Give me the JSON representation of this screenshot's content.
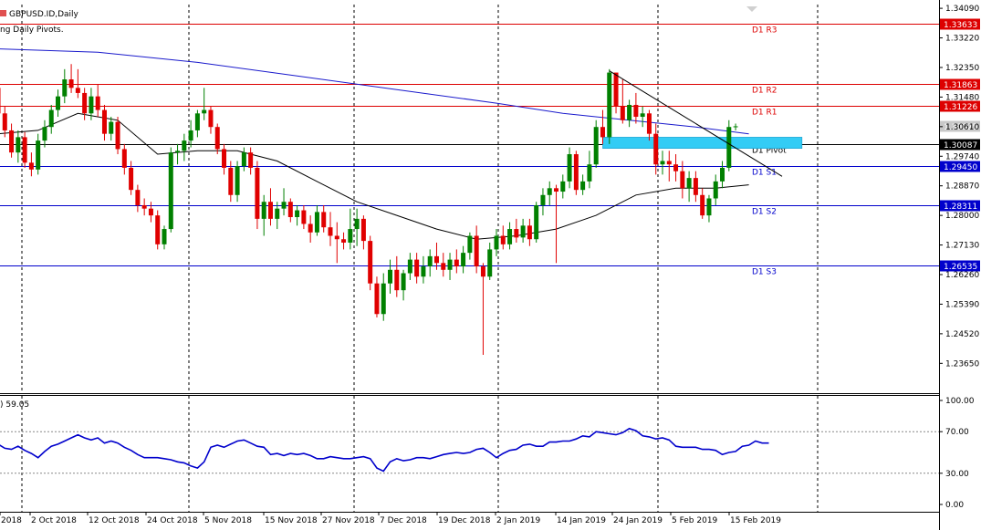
{
  "chart_data": {
    "type": "candlestick",
    "symbol_title": "GBPUSD.ID,Daily",
    "indicator_caption": "ng Daily Pivots.",
    "main_ylim": [
      1.228,
      1.342
    ],
    "price_ticks": [
      "1.34090",
      "1.33220",
      "1.32350",
      "1.31480",
      "1.30610",
      "1.29740",
      "1.28870",
      "1.28000",
      "1.27130",
      "1.26260",
      "1.25390",
      "1.24520",
      "1.23650"
    ],
    "date_labels": [
      "2018",
      "2 Oct 2018",
      "12 Oct 2018",
      "24 Oct 2018",
      "5 Nov 2018",
      "15 Nov 2018",
      "27 Nov 2018",
      "7 Dec 2018",
      "19 Dec 2018",
      "2 Jan 2019",
      "14 Jan 2019",
      "24 Jan 2019",
      "5 Feb 2019",
      "15 Feb 2019"
    ],
    "pivot_levels": [
      {
        "label": "D1 R3",
        "value": 1.33633,
        "tag": "1.33633",
        "color": "#dd0000"
      },
      {
        "label": "D1 R2",
        "value": 1.31863,
        "tag": "1.31863",
        "color": "#dd0000"
      },
      {
        "label": "D1 R1",
        "value": 1.31226,
        "tag": "1.31226",
        "color": "#dd0000"
      },
      {
        "label": "D1 Pivot",
        "value": 1.30087,
        "tag": "1.30087",
        "color": "#000000"
      },
      {
        "label": "D1 S1",
        "value": 1.2945,
        "tag": "1.29450",
        "color": "#0000cc"
      },
      {
        "label": "D1 S2",
        "value": 1.28311,
        "tag": "1.28311",
        "color": "#0000cc"
      },
      {
        "label": "D1 S3",
        "value": 1.26535,
        "tag": "1.26535",
        "color": "#0000cc"
      }
    ],
    "current_price_tag": "1.30625",
    "candles": [
      {
        "o": 1.3175,
        "h": 1.3192,
        "l": 1.3085,
        "c": 1.31
      },
      {
        "o": 1.31,
        "h": 1.312,
        "l": 1.303,
        "c": 1.305
      },
      {
        "o": 1.305,
        "h": 1.307,
        "l": 1.297,
        "c": 1.2985
      },
      {
        "o": 1.2985,
        "h": 1.305,
        "l": 1.2955,
        "c": 1.303
      },
      {
        "o": 1.303,
        "h": 1.3045,
        "l": 1.294,
        "c": 1.2955
      },
      {
        "o": 1.2955,
        "h": 1.2985,
        "l": 1.2915,
        "c": 1.2935
      },
      {
        "o": 1.2935,
        "h": 1.304,
        "l": 1.292,
        "c": 1.302
      },
      {
        "o": 1.302,
        "h": 1.308,
        "l": 1.3,
        "c": 1.306
      },
      {
        "o": 1.306,
        "h": 1.3125,
        "l": 1.304,
        "c": 1.311
      },
      {
        "o": 1.311,
        "h": 1.317,
        "l": 1.309,
        "c": 1.315
      },
      {
        "o": 1.315,
        "h": 1.323,
        "l": 1.313,
        "c": 1.32
      },
      {
        "o": 1.32,
        "h": 1.3245,
        "l": 1.316,
        "c": 1.3175
      },
      {
        "o": 1.3175,
        "h": 1.323,
        "l": 1.3145,
        "c": 1.316
      },
      {
        "o": 1.316,
        "h": 1.3175,
        "l": 1.308,
        "c": 1.31
      },
      {
        "o": 1.31,
        "h": 1.3175,
        "l": 1.308,
        "c": 1.315
      },
      {
        "o": 1.315,
        "h": 1.3185,
        "l": 1.309,
        "c": 1.311
      },
      {
        "o": 1.311,
        "h": 1.3125,
        "l": 1.302,
        "c": 1.304
      },
      {
        "o": 1.304,
        "h": 1.309,
        "l": 1.302,
        "c": 1.3075
      },
      {
        "o": 1.3075,
        "h": 1.309,
        "l": 1.298,
        "c": 1.2995
      },
      {
        "o": 1.2995,
        "h": 1.301,
        "l": 1.292,
        "c": 1.294
      },
      {
        "o": 1.294,
        "h": 1.296,
        "l": 1.286,
        "c": 1.2875
      },
      {
        "o": 1.2875,
        "h": 1.289,
        "l": 1.281,
        "c": 1.283
      },
      {
        "o": 1.283,
        "h": 1.285,
        "l": 1.28,
        "c": 1.282
      },
      {
        "o": 1.282,
        "h": 1.284,
        "l": 1.278,
        "c": 1.28
      },
      {
        "o": 1.28,
        "h": 1.2815,
        "l": 1.27,
        "c": 1.2715
      },
      {
        "o": 1.2715,
        "h": 1.277,
        "l": 1.27,
        "c": 1.276
      },
      {
        "o": 1.276,
        "h": 1.3,
        "l": 1.275,
        "c": 1.2985
      },
      {
        "o": 1.2985,
        "h": 1.301,
        "l": 1.295,
        "c": 1.299
      },
      {
        "o": 1.299,
        "h": 1.304,
        "l": 1.296,
        "c": 1.302
      },
      {
        "o": 1.302,
        "h": 1.308,
        "l": 1.3,
        "c": 1.305
      },
      {
        "o": 1.305,
        "h": 1.311,
        "l": 1.303,
        "c": 1.31
      },
      {
        "o": 1.31,
        "h": 1.3175,
        "l": 1.308,
        "c": 1.311
      },
      {
        "o": 1.311,
        "h": 1.312,
        "l": 1.304,
        "c": 1.306
      },
      {
        "o": 1.306,
        "h": 1.307,
        "l": 1.298,
        "c": 1.2995
      },
      {
        "o": 1.2995,
        "h": 1.301,
        "l": 1.292,
        "c": 1.294
      },
      {
        "o": 1.294,
        "h": 1.296,
        "l": 1.284,
        "c": 1.286
      },
      {
        "o": 1.286,
        "h": 1.296,
        "l": 1.284,
        "c": 1.2945
      },
      {
        "o": 1.2945,
        "h": 1.3,
        "l": 1.293,
        "c": 1.2985
      },
      {
        "o": 1.2985,
        "h": 1.3,
        "l": 1.292,
        "c": 1.294
      },
      {
        "o": 1.294,
        "h": 1.296,
        "l": 1.276,
        "c": 1.279
      },
      {
        "o": 1.279,
        "h": 1.286,
        "l": 1.274,
        "c": 1.284
      },
      {
        "o": 1.284,
        "h": 1.288,
        "l": 1.277,
        "c": 1.279
      },
      {
        "o": 1.279,
        "h": 1.284,
        "l": 1.276,
        "c": 1.282
      },
      {
        "o": 1.282,
        "h": 1.288,
        "l": 1.28,
        "c": 1.284
      },
      {
        "o": 1.284,
        "h": 1.285,
        "l": 1.278,
        "c": 1.2795
      },
      {
        "o": 1.2795,
        "h": 1.283,
        "l": 1.277,
        "c": 1.2815
      },
      {
        "o": 1.2815,
        "h": 1.283,
        "l": 1.276,
        "c": 1.2775
      },
      {
        "o": 1.2775,
        "h": 1.28,
        "l": 1.272,
        "c": 1.275
      },
      {
        "o": 1.275,
        "h": 1.283,
        "l": 1.274,
        "c": 1.281
      },
      {
        "o": 1.281,
        "h": 1.283,
        "l": 1.275,
        "c": 1.2765
      },
      {
        "o": 1.2765,
        "h": 1.281,
        "l": 1.271,
        "c": 1.274
      },
      {
        "o": 1.274,
        "h": 1.278,
        "l": 1.266,
        "c": 1.273
      },
      {
        "o": 1.273,
        "h": 1.275,
        "l": 1.27,
        "c": 1.272
      },
      {
        "o": 1.272,
        "h": 1.282,
        "l": 1.27,
        "c": 1.276
      },
      {
        "o": 1.276,
        "h": 1.282,
        "l": 1.271,
        "c": 1.279
      },
      {
        "o": 1.279,
        "h": 1.28,
        "l": 1.27,
        "c": 1.2725
      },
      {
        "o": 1.2725,
        "h": 1.274,
        "l": 1.258,
        "c": 1.26
      },
      {
        "o": 1.26,
        "h": 1.262,
        "l": 1.25,
        "c": 1.251
      },
      {
        "o": 1.251,
        "h": 1.263,
        "l": 1.249,
        "c": 1.26
      },
      {
        "o": 1.26,
        "h": 1.267,
        "l": 1.257,
        "c": 1.264
      },
      {
        "o": 1.264,
        "h": 1.268,
        "l": 1.256,
        "c": 1.258
      },
      {
        "o": 1.258,
        "h": 1.264,
        "l": 1.255,
        "c": 1.263
      },
      {
        "o": 1.263,
        "h": 1.269,
        "l": 1.261,
        "c": 1.267
      },
      {
        "o": 1.267,
        "h": 1.269,
        "l": 1.26,
        "c": 1.262
      },
      {
        "o": 1.262,
        "h": 1.268,
        "l": 1.26,
        "c": 1.265
      },
      {
        "o": 1.265,
        "h": 1.27,
        "l": 1.262,
        "c": 1.268
      },
      {
        "o": 1.268,
        "h": 1.272,
        "l": 1.264,
        "c": 1.266
      },
      {
        "o": 1.266,
        "h": 1.269,
        "l": 1.262,
        "c": 1.264
      },
      {
        "o": 1.264,
        "h": 1.269,
        "l": 1.261,
        "c": 1.267
      },
      {
        "o": 1.267,
        "h": 1.27,
        "l": 1.263,
        "c": 1.265
      },
      {
        "o": 1.265,
        "h": 1.271,
        "l": 1.263,
        "c": 1.269
      },
      {
        "o": 1.269,
        "h": 1.275,
        "l": 1.267,
        "c": 1.274
      },
      {
        "o": 1.274,
        "h": 1.277,
        "l": 1.263,
        "c": 1.265
      },
      {
        "o": 1.265,
        "h": 1.266,
        "l": 1.239,
        "c": 1.262
      },
      {
        "o": 1.262,
        "h": 1.272,
        "l": 1.261,
        "c": 1.27
      },
      {
        "o": 1.27,
        "h": 1.276,
        "l": 1.268,
        "c": 1.274
      },
      {
        "o": 1.274,
        "h": 1.277,
        "l": 1.27,
        "c": 1.2715
      },
      {
        "o": 1.2715,
        "h": 1.278,
        "l": 1.27,
        "c": 1.276
      },
      {
        "o": 1.276,
        "h": 1.279,
        "l": 1.272,
        "c": 1.2735
      },
      {
        "o": 1.2735,
        "h": 1.279,
        "l": 1.272,
        "c": 1.277
      },
      {
        "o": 1.277,
        "h": 1.279,
        "l": 1.271,
        "c": 1.273
      },
      {
        "o": 1.273,
        "h": 1.284,
        "l": 1.272,
        "c": 1.283
      },
      {
        "o": 1.283,
        "h": 1.288,
        "l": 1.28,
        "c": 1.286
      },
      {
        "o": 1.286,
        "h": 1.29,
        "l": 1.283,
        "c": 1.288
      },
      {
        "o": 1.288,
        "h": 1.289,
        "l": 1.266,
        "c": 1.287
      },
      {
        "o": 1.287,
        "h": 1.292,
        "l": 1.285,
        "c": 1.29
      },
      {
        "o": 1.29,
        "h": 1.3,
        "l": 1.288,
        "c": 1.298
      },
      {
        "o": 1.298,
        "h": 1.299,
        "l": 1.286,
        "c": 1.2875
      },
      {
        "o": 1.2875,
        "h": 1.292,
        "l": 1.286,
        "c": 1.29
      },
      {
        "o": 1.29,
        "h": 1.299,
        "l": 1.288,
        "c": 1.295
      },
      {
        "o": 1.295,
        "h": 1.308,
        "l": 1.294,
        "c": 1.306
      },
      {
        "o": 1.306,
        "h": 1.311,
        "l": 1.301,
        "c": 1.303
      },
      {
        "o": 1.303,
        "h": 1.323,
        "l": 1.301,
        "c": 1.322
      },
      {
        "o": 1.322,
        "h": 1.3215,
        "l": 1.31,
        "c": 1.312
      },
      {
        "o": 1.312,
        "h": 1.32,
        "l": 1.307,
        "c": 1.308
      },
      {
        "o": 1.308,
        "h": 1.314,
        "l": 1.306,
        "c": 1.3125
      },
      {
        "o": 1.3125,
        "h": 1.316,
        "l": 1.307,
        "c": 1.309
      },
      {
        "o": 1.309,
        "h": 1.312,
        "l": 1.306,
        "c": 1.31
      },
      {
        "o": 1.31,
        "h": 1.311,
        "l": 1.302,
        "c": 1.304
      },
      {
        "o": 1.304,
        "h": 1.307,
        "l": 1.292,
        "c": 1.295
      },
      {
        "o": 1.295,
        "h": 1.299,
        "l": 1.292,
        "c": 1.296
      },
      {
        "o": 1.296,
        "h": 1.299,
        "l": 1.29,
        "c": 1.295
      },
      {
        "o": 1.295,
        "h": 1.298,
        "l": 1.29,
        "c": 1.293
      },
      {
        "o": 1.293,
        "h": 1.296,
        "l": 1.285,
        "c": 1.288
      },
      {
        "o": 1.288,
        "h": 1.293,
        "l": 1.284,
        "c": 1.291
      },
      {
        "o": 1.291,
        "h": 1.293,
        "l": 1.284,
        "c": 1.286
      },
      {
        "o": 1.286,
        "h": 1.288,
        "l": 1.279,
        "c": 1.28
      },
      {
        "o": 1.28,
        "h": 1.286,
        "l": 1.278,
        "c": 1.285
      },
      {
        "o": 1.285,
        "h": 1.292,
        "l": 1.283,
        "c": 1.29
      },
      {
        "o": 1.29,
        "h": 1.296,
        "l": 1.288,
        "c": 1.294
      },
      {
        "o": 1.294,
        "h": 1.308,
        "l": 1.293,
        "c": 1.306
      },
      {
        "o": 1.306,
        "h": 1.307,
        "l": 1.305,
        "c": 1.3062
      }
    ],
    "ma_slow": [
      [
        0,
        1.329
      ],
      [
        15,
        1.328
      ],
      [
        30,
        1.325
      ],
      [
        45,
        1.321
      ],
      [
        60,
        1.317
      ],
      [
        75,
        1.313
      ],
      [
        85,
        1.31
      ],
      [
        95,
        1.308
      ],
      [
        105,
        1.306
      ],
      [
        113,
        1.304
      ]
    ],
    "ma_fast": [
      [
        0,
        1.304
      ],
      [
        6,
        1.305
      ],
      [
        12,
        1.31
      ],
      [
        18,
        1.308
      ],
      [
        24,
        1.298
      ],
      [
        30,
        1.299
      ],
      [
        36,
        1.299
      ],
      [
        42,
        1.296
      ],
      [
        48,
        1.29
      ],
      [
        54,
        1.284
      ],
      [
        60,
        1.28
      ],
      [
        66,
        1.276
      ],
      [
        72,
        1.273
      ],
      [
        78,
        1.274
      ],
      [
        84,
        1.276
      ],
      [
        90,
        1.28
      ],
      [
        96,
        1.286
      ],
      [
        102,
        1.288
      ],
      [
        108,
        1.288
      ],
      [
        113,
        1.289
      ]
    ],
    "trendline": {
      "i0": 92,
      "v0": 1.3225,
      "i1": 118,
      "v1": 1.2915
    },
    "zone": {
      "i0": 91,
      "i1": 121,
      "top": 1.3022,
      "bottom": 1.3005,
      "color": "#33ccf5"
    },
    "rsi": {
      "label_value": "59.05",
      "ylim": [
        0,
        100
      ],
      "ticks": [
        "100.00",
        "70.00",
        "30.00",
        "0.00"
      ],
      "tick_values": [
        100,
        70,
        30,
        0
      ],
      "level_lines": [
        70,
        30
      ],
      "values": [
        58,
        54,
        53,
        56,
        52,
        49,
        45,
        51,
        56,
        58,
        61,
        64,
        67,
        64,
        62,
        64,
        59,
        61,
        59,
        55,
        52,
        48,
        45,
        45,
        45,
        44,
        43,
        41,
        40,
        37,
        35,
        41,
        55,
        57,
        55,
        58,
        61,
        62,
        59,
        56,
        55,
        48,
        49,
        47,
        49,
        48,
        49,
        47,
        44,
        44,
        46,
        45,
        44,
        44,
        45,
        46,
        44,
        35,
        32,
        41,
        44,
        42,
        43,
        45,
        45,
        44,
        46,
        48,
        49,
        50,
        49,
        50,
        53,
        54,
        50,
        45,
        49,
        52,
        53,
        57,
        58,
        56,
        56,
        60,
        60,
        61,
        61,
        63,
        66,
        65,
        70,
        69,
        68,
        67,
        69,
        73,
        71,
        66,
        65,
        63,
        64,
        62,
        56,
        55,
        55,
        55,
        53,
        53,
        52,
        48,
        50,
        51,
        56,
        57,
        61,
        59,
        59
      ]
    }
  }
}
